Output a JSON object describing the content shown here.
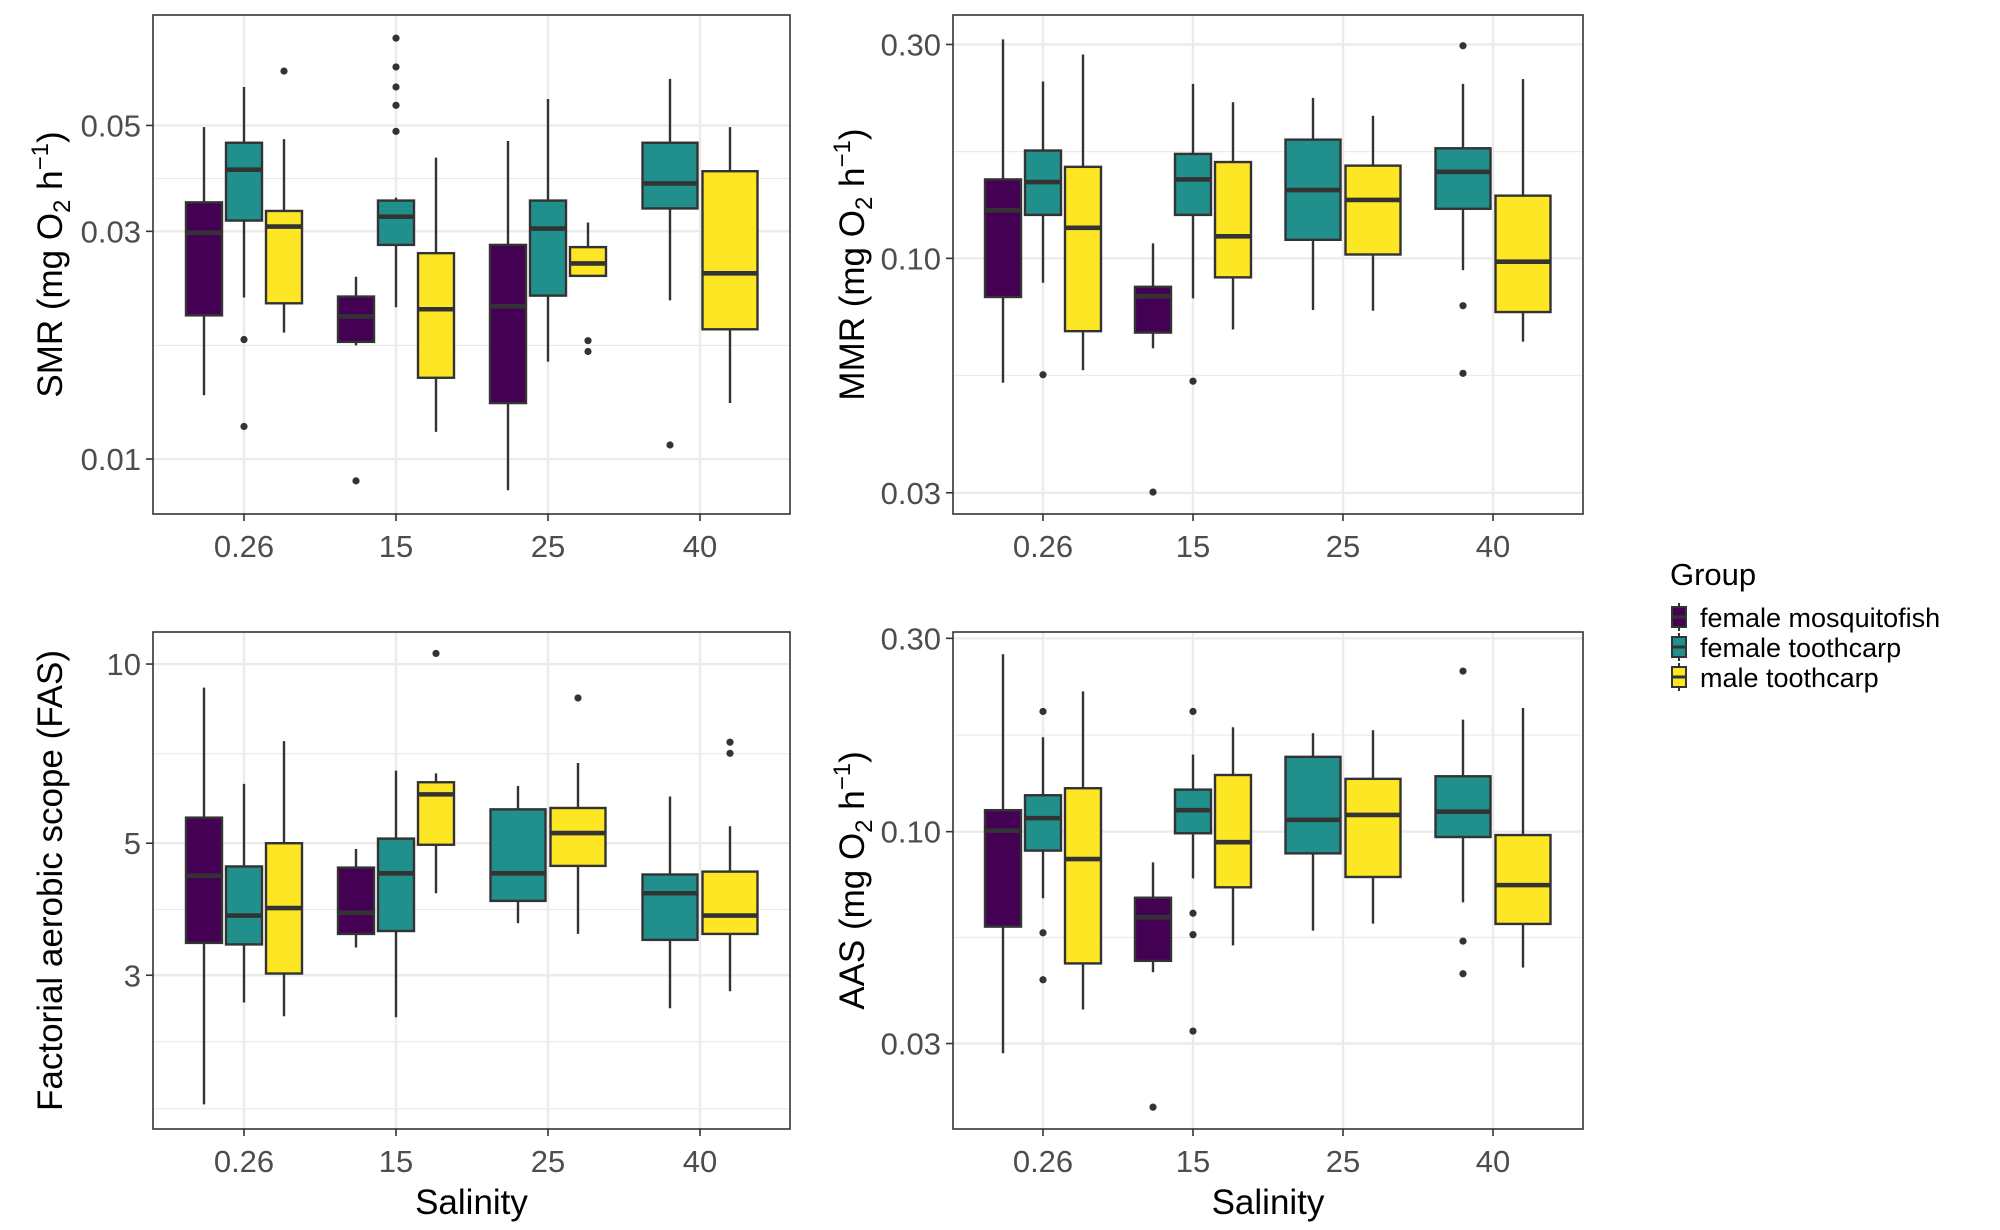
{
  "figure": {
    "colors": {
      "female mosquitofish": "#440154",
      "female toothcarp": "#21908C",
      "male toothcarp": "#FDE725",
      "stroke": "#333333",
      "grid": "#EBEBEB",
      "panel_border": "#333333"
    }
  },
  "legend": {
    "title": "Group",
    "items": [
      {
        "label": "female mosquitofish",
        "color": "#440154"
      },
      {
        "label": "female toothcarp",
        "color": "#21908C"
      },
      {
        "label": "male toothcarp",
        "color": "#FDE725"
      }
    ],
    "placement": "right"
  },
  "chart_data": [
    {
      "type": "boxplot",
      "panel": "top-left",
      "title": "",
      "xlabel": "",
      "ylabel": "SMR (mg O2 h^-1)",
      "ylabel_parts": {
        "main": "SMR (mg O",
        "sub": "2",
        "mid": " h",
        "sup": "−1",
        "end": ")"
      },
      "yscale": "log10",
      "ylim": [
        0.00767,
        0.0852
      ],
      "yticks": [
        0.01,
        0.03,
        0.05
      ],
      "ytick_labels": [
        "0.01",
        "0.03",
        "0.05"
      ],
      "yminor": [
        0.0173,
        0.0387
      ],
      "categories": [
        "0.26",
        "15",
        "25",
        "40"
      ],
      "grid": true,
      "groups": [
        {
          "category": "0.26",
          "boxes": [
            {
              "series": "female mosquitofish",
              "lower": 0.0136,
              "q1": 0.02,
              "median": 0.0298,
              "q3": 0.0345,
              "upper": 0.0496,
              "outliers": []
            },
            {
              "series": "female toothcarp",
              "lower": 0.0218,
              "q1": 0.0316,
              "median": 0.0404,
              "q3": 0.046,
              "upper": 0.0602,
              "outliers": [
                0.0178,
                0.0117
              ]
            },
            {
              "series": "male toothcarp",
              "lower": 0.0184,
              "q1": 0.0212,
              "median": 0.0307,
              "q3": 0.0331,
              "upper": 0.0468,
              "outliers": [
                0.065
              ]
            }
          ]
        },
        {
          "category": "15",
          "boxes": [
            {
              "series": "female mosquitofish",
              "lower": 0.0173,
              "q1": 0.0176,
              "median": 0.0199,
              "q3": 0.0219,
              "upper": 0.0241,
              "outliers": [
                0.009
              ]
            },
            {
              "series": "female toothcarp",
              "lower": 0.0208,
              "q1": 0.0281,
              "median": 0.0322,
              "q3": 0.0348,
              "upper": 0.0353,
              "outliers": [
                0.0762,
                0.0663,
                0.0602,
                0.0551,
                0.0486
              ]
            },
            {
              "series": "male toothcarp",
              "lower": 0.0114,
              "q1": 0.0148,
              "median": 0.0206,
              "q3": 0.027,
              "upper": 0.0428,
              "outliers": []
            }
          ]
        },
        {
          "category": "25",
          "boxes": [
            {
              "series": "female mosquitofish",
              "lower": 0.0086,
              "q1": 0.0131,
              "median": 0.0209,
              "q3": 0.0281,
              "upper": 0.0464,
              "outliers": []
            },
            {
              "series": "female toothcarp",
              "lower": 0.016,
              "q1": 0.022,
              "median": 0.0304,
              "q3": 0.0348,
              "upper": 0.0568,
              "outliers": []
            },
            {
              "series": "male toothcarp",
              "lower": 0.0242,
              "q1": 0.0242,
              "median": 0.0257,
              "q3": 0.0278,
              "upper": 0.0313,
              "outliers": [
                0.0177,
                0.0168
              ]
            }
          ]
        },
        {
          "category": "40",
          "boxes": [
            {
              "series": "female toothcarp",
              "lower": 0.0215,
              "q1": 0.0335,
              "median": 0.0378,
              "q3": 0.046,
              "upper": 0.0626,
              "outliers": [
                0.0107
              ]
            },
            {
              "series": "male toothcarp",
              "lower": 0.0131,
              "q1": 0.0187,
              "median": 0.0245,
              "q3": 0.0401,
              "upper": 0.0496,
              "outliers": []
            }
          ]
        }
      ]
    },
    {
      "type": "boxplot",
      "panel": "top-right",
      "title": "",
      "xlabel": "",
      "ylabel": "MMR (mg O2 h^-1)",
      "ylabel_parts": {
        "main": "MMR (mg O",
        "sub": "2",
        "mid": " h",
        "sup": "−1",
        "end": ")"
      },
      "yscale": "log10",
      "ylim": [
        0.0269,
        0.349
      ],
      "yticks": [
        0.03,
        0.1,
        0.3
      ],
      "ytick_labels": [
        "0.03",
        "0.10",
        "0.30"
      ],
      "yminor": [
        0.0548,
        0.173
      ],
      "categories": [
        "0.26",
        "15",
        "25",
        "40"
      ],
      "grid": true,
      "groups": [
        {
          "category": "0.26",
          "boxes": [
            {
              "series": "female mosquitofish",
              "lower": 0.0528,
              "q1": 0.082,
              "median": 0.128,
              "q3": 0.15,
              "upper": 0.308,
              "outliers": []
            },
            {
              "series": "female toothcarp",
              "lower": 0.0882,
              "q1": 0.125,
              "median": 0.148,
              "q3": 0.174,
              "upper": 0.248,
              "outliers": [
                0.055
              ]
            },
            {
              "series": "male toothcarp",
              "lower": 0.0563,
              "q1": 0.0688,
              "median": 0.117,
              "q3": 0.16,
              "upper": 0.285,
              "outliers": []
            }
          ]
        },
        {
          "category": "15",
          "boxes": [
            {
              "series": "female mosquitofish",
              "lower": 0.063,
              "q1": 0.0683,
              "median": 0.0823,
              "q3": 0.0864,
              "upper": 0.108,
              "outliers": [
                0.0301
              ]
            },
            {
              "series": "female toothcarp",
              "lower": 0.0814,
              "q1": 0.125,
              "median": 0.15,
              "q3": 0.171,
              "upper": 0.245,
              "outliers": [
                0.0532
              ]
            },
            {
              "series": "male toothcarp",
              "lower": 0.0694,
              "q1": 0.0907,
              "median": 0.112,
              "q3": 0.164,
              "upper": 0.223,
              "outliers": []
            }
          ]
        },
        {
          "category": "25",
          "boxes": [
            {
              "series": "female toothcarp",
              "lower": 0.0767,
              "q1": 0.11,
              "median": 0.142,
              "q3": 0.184,
              "upper": 0.228,
              "outliers": []
            },
            {
              "series": "male toothcarp",
              "lower": 0.0764,
              "q1": 0.102,
              "median": 0.135,
              "q3": 0.161,
              "upper": 0.208,
              "outliers": []
            }
          ]
        },
        {
          "category": "40",
          "boxes": [
            {
              "series": "female toothcarp",
              "lower": 0.0941,
              "q1": 0.129,
              "median": 0.156,
              "q3": 0.176,
              "upper": 0.245,
              "outliers": [
                0.298,
                0.0784,
                0.0554
              ]
            },
            {
              "series": "male toothcarp",
              "lower": 0.0652,
              "q1": 0.0759,
              "median": 0.0983,
              "q3": 0.138,
              "upper": 0.251,
              "outliers": []
            }
          ]
        }
      ]
    },
    {
      "type": "boxplot",
      "panel": "bottom-left",
      "title": "",
      "xlabel": "Salinity",
      "ylabel": "Factorial aerobic scope (FAS)",
      "ylabel_parts": {
        "main": "Factorial aerobic scope (FAS)",
        "sub": "",
        "mid": "",
        "sup": "",
        "end": ""
      },
      "yscale": "log10",
      "ylim": [
        1.655,
        11.32
      ],
      "yticks": [
        3,
        5,
        10
      ],
      "ytick_labels": [
        "3",
        "5",
        "10"
      ],
      "yminor": [
        1.79,
        2.32,
        3.87,
        7.07
      ],
      "categories": [
        "0.26",
        "15",
        "25",
        "40"
      ],
      "grid": true,
      "groups": [
        {
          "category": "0.26",
          "boxes": [
            {
              "series": "female mosquitofish",
              "lower": 1.82,
              "q1": 3.4,
              "median": 4.41,
              "q3": 5.52,
              "upper": 9.13,
              "outliers": []
            },
            {
              "series": "female toothcarp",
              "lower": 2.7,
              "q1": 3.38,
              "median": 3.78,
              "q3": 4.57,
              "upper": 6.29,
              "outliers": []
            },
            {
              "series": "male toothcarp",
              "lower": 2.56,
              "q1": 3.02,
              "median": 3.89,
              "q3": 5.0,
              "upper": 7.42,
              "outliers": []
            }
          ]
        },
        {
          "category": "15",
          "boxes": [
            {
              "series": "female mosquitofish",
              "lower": 3.34,
              "q1": 3.52,
              "median": 3.82,
              "q3": 4.55,
              "upper": 4.89,
              "outliers": []
            },
            {
              "series": "female toothcarp",
              "lower": 2.55,
              "q1": 3.56,
              "median": 4.45,
              "q3": 5.09,
              "upper": 6.62,
              "outliers": []
            },
            {
              "series": "male toothcarp",
              "lower": 4.12,
              "q1": 4.97,
              "median": 6.04,
              "q3": 6.33,
              "upper": 6.55,
              "outliers": [
                10.42
              ]
            }
          ]
        },
        {
          "category": "25",
          "boxes": [
            {
              "series": "female toothcarp",
              "lower": 3.67,
              "q1": 4.0,
              "median": 4.45,
              "q3": 5.7,
              "upper": 6.24,
              "outliers": []
            },
            {
              "series": "male toothcarp",
              "lower": 3.52,
              "q1": 4.58,
              "median": 5.2,
              "q3": 5.73,
              "upper": 6.82,
              "outliers": [
                8.77
              ]
            }
          ]
        },
        {
          "category": "40",
          "boxes": [
            {
              "series": "female toothcarp",
              "lower": 2.64,
              "q1": 3.44,
              "median": 4.12,
              "q3": 4.43,
              "upper": 5.99,
              "outliers": []
            },
            {
              "series": "male toothcarp",
              "lower": 2.82,
              "q1": 3.52,
              "median": 3.78,
              "q3": 4.48,
              "upper": 5.34,
              "outliers": [
                7.39,
                7.08
              ]
            }
          ]
        }
      ]
    },
    {
      "type": "boxplot",
      "panel": "bottom-right",
      "title": "",
      "xlabel": "Salinity",
      "ylabel": "AAS (mg O2 h^-1)",
      "ylabel_parts": {
        "main": "AAS (mg O",
        "sub": "2",
        "mid": " h",
        "sup": "−1",
        "end": ")"
      },
      "yscale": "log10",
      "ylim": [
        0.01846,
        0.311
      ],
      "yticks": [
        0.03,
        0.1,
        0.3
      ],
      "ytick_labels": [
        "0.03",
        "0.10",
        "0.30"
      ],
      "yminor": [
        0.0548,
        0.173
      ],
      "categories": [
        "0.26",
        "15",
        "25",
        "40"
      ],
      "grid": true,
      "groups": [
        {
          "category": "0.26",
          "boxes": [
            {
              "series": "female mosquitofish",
              "lower": 0.0284,
              "q1": 0.0583,
              "median": 0.1006,
              "q3": 0.113,
              "upper": 0.274,
              "outliers": []
            },
            {
              "series": "female toothcarp",
              "lower": 0.0685,
              "q1": 0.0898,
              "median": 0.108,
              "q3": 0.123,
              "upper": 0.171,
              "outliers": [
                0.198,
                0.0563,
                0.0431
              ]
            },
            {
              "series": "male toothcarp",
              "lower": 0.0364,
              "q1": 0.0473,
              "median": 0.0856,
              "q3": 0.128,
              "upper": 0.222,
              "outliers": []
            }
          ]
        },
        {
          "category": "15",
          "boxes": [
            {
              "series": "female mosquitofish",
              "lower": 0.045,
              "q1": 0.048,
              "median": 0.0615,
              "q3": 0.0687,
              "upper": 0.084,
              "outliers": [
                0.0209
              ]
            },
            {
              "series": "female toothcarp",
              "lower": 0.0767,
              "q1": 0.0991,
              "median": 0.113,
              "q3": 0.127,
              "upper": 0.155,
              "outliers": [
                0.198,
                0.0629,
                0.0557,
                0.0322
              ]
            },
            {
              "series": "male toothcarp",
              "lower": 0.0524,
              "q1": 0.0729,
              "median": 0.0942,
              "q3": 0.138,
              "upper": 0.181,
              "outliers": []
            }
          ]
        },
        {
          "category": "25",
          "boxes": [
            {
              "series": "female toothcarp",
              "lower": 0.057,
              "q1": 0.0884,
              "median": 0.107,
              "q3": 0.153,
              "upper": 0.175,
              "outliers": []
            },
            {
              "series": "male toothcarp",
              "lower": 0.0593,
              "q1": 0.0773,
              "median": 0.11,
              "q3": 0.135,
              "upper": 0.178,
              "outliers": []
            }
          ]
        },
        {
          "category": "40",
          "boxes": [
            {
              "series": "female toothcarp",
              "lower": 0.0669,
              "q1": 0.097,
              "median": 0.112,
              "q3": 0.137,
              "upper": 0.189,
              "outliers": [
                0.249,
                0.0537,
                0.0446
              ]
            },
            {
              "series": "male toothcarp",
              "lower": 0.0462,
              "q1": 0.0592,
              "median": 0.0738,
              "q3": 0.0981,
              "upper": 0.202,
              "outliers": []
            }
          ]
        }
      ]
    }
  ]
}
